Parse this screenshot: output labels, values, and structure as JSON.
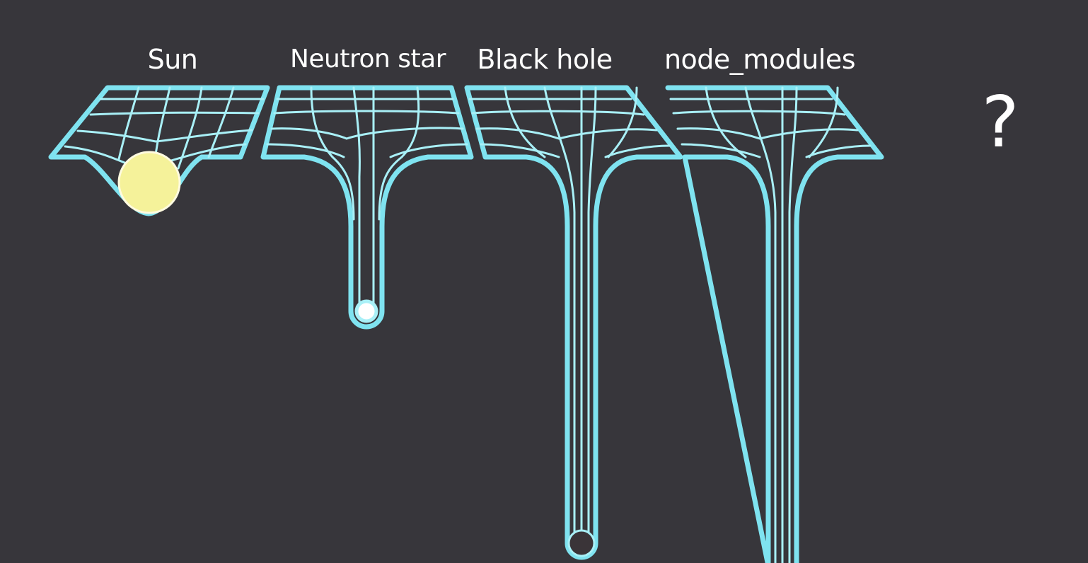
{
  "labels": {
    "sun": "Sun",
    "neutron_star": "Neutron star",
    "black_hole": "Black hole",
    "node_modules": "node_modules",
    "unknown": "?"
  },
  "colors": {
    "background": "#37363b",
    "grid": "#7fe3f0",
    "grid_inner": "#a9f0f7",
    "sun": "#f5f29a",
    "neutron_star": "#ffffff",
    "black_hole": "#3a3438",
    "text": "#ffffff"
  },
  "icons": {
    "sun": "sun-sphere",
    "neutron_star": "glowing-dot",
    "black_hole": "dark-sphere",
    "unknown": "question-mark"
  }
}
